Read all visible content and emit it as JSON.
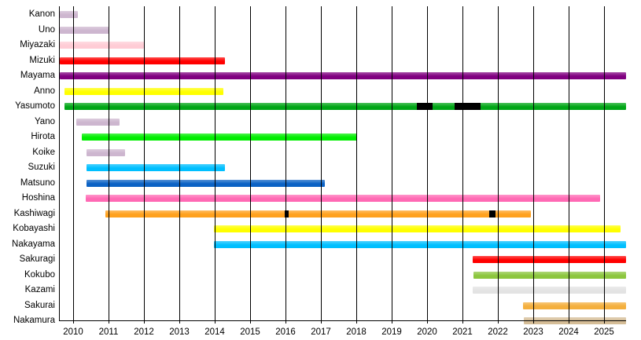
{
  "chart_data": {
    "type": "gantt-timeline",
    "title": "",
    "xlabel": "",
    "ylabel": "",
    "grid": true,
    "gridline_color": "#000000",
    "gap_color": "#000000",
    "x_axis": {
      "start_year": 2009.62,
      "end_year": 2025.62,
      "tick_years": [
        2010,
        2011,
        2012,
        2013,
        2014,
        2015,
        2016,
        2017,
        2018,
        2019,
        2020,
        2021,
        2022,
        2023,
        2024,
        2025
      ],
      "tick_labels": [
        "2010",
        "2011",
        "2012",
        "2013",
        "2014",
        "2015",
        "2016",
        "2017",
        "2018",
        "2019",
        "2020",
        "2021",
        "2022",
        "2023",
        "2024",
        "2025"
      ]
    },
    "rows": [
      {
        "label": "Kanon",
        "color": "#CDB6CF",
        "start": 2009.62,
        "end": 2010.13,
        "gaps": []
      },
      {
        "label": "Uno",
        "color": "#CDB6CF",
        "start": 2009.62,
        "end": 2011.02,
        "gaps": []
      },
      {
        "label": "Miyazaki",
        "color": "#FFCCD5",
        "start": 2009.62,
        "end": 2012.0,
        "gaps": []
      },
      {
        "label": "Mizuki",
        "color": "#FF0000",
        "start": 2009.62,
        "end": 2014.29,
        "gaps": []
      },
      {
        "label": "Mayama",
        "color": "#800080",
        "start": 2009.62,
        "end": 2025.62,
        "gaps": []
      },
      {
        "label": "Anno",
        "color": "#FFFF00",
        "start": 2009.76,
        "end": 2014.24,
        "gaps": []
      },
      {
        "label": "Yasumoto",
        "color": "#00A616",
        "start": 2009.76,
        "end": 2025.62,
        "gaps": [
          [
            2019.71,
            2020.16
          ],
          [
            2020.78,
            2021.51
          ]
        ]
      },
      {
        "label": "Yano",
        "color": "#CDB6CF",
        "start": 2010.09,
        "end": 2011.31,
        "gaps": []
      },
      {
        "label": "Hirota",
        "color": "#00EE00",
        "start": 2010.24,
        "end": 2018.02,
        "gaps": []
      },
      {
        "label": "Koike",
        "color": "#CDB6CF",
        "start": 2010.38,
        "end": 2011.47,
        "gaps": []
      },
      {
        "label": "Suzuki",
        "color": "#00BFFF",
        "start": 2010.38,
        "end": 2014.29,
        "gaps": []
      },
      {
        "label": "Matsuno",
        "color": "#0B62C4",
        "start": 2010.38,
        "end": 2017.11,
        "gaps": []
      },
      {
        "label": "Hoshina",
        "color": "#FF69B4",
        "start": 2010.36,
        "end": 2024.89,
        "gaps": []
      },
      {
        "label": "Kashiwagi",
        "color": "#FFA11E",
        "start": 2010.91,
        "end": 2022.93,
        "gaps": [
          [
            2015.98,
            2016.09
          ],
          [
            2021.76,
            2021.93
          ]
        ]
      },
      {
        "label": "Kobayashi",
        "color": "#FFFF00",
        "start": 2013.98,
        "end": 2025.47,
        "gaps": []
      },
      {
        "label": "Nakayama",
        "color": "#00BFFF",
        "start": 2013.98,
        "end": 2025.62,
        "gaps": []
      },
      {
        "label": "Sakuragi",
        "color": "#FF0000",
        "start": 2021.29,
        "end": 2025.62,
        "gaps": []
      },
      {
        "label": "Kokubo",
        "color": "#8CC63E",
        "start": 2021.31,
        "end": 2025.62,
        "gaps": []
      },
      {
        "label": "Kazami",
        "color": "#E3E3E3",
        "start": 2021.29,
        "end": 2025.62,
        "gaps": []
      },
      {
        "label": "Sakurai",
        "color": "#F4AF3D",
        "start": 2022.71,
        "end": 2025.62,
        "gaps": []
      },
      {
        "label": "Nakamura",
        "color": "#D5BD97",
        "start": 2022.73,
        "end": 2025.62,
        "gaps": []
      }
    ]
  }
}
